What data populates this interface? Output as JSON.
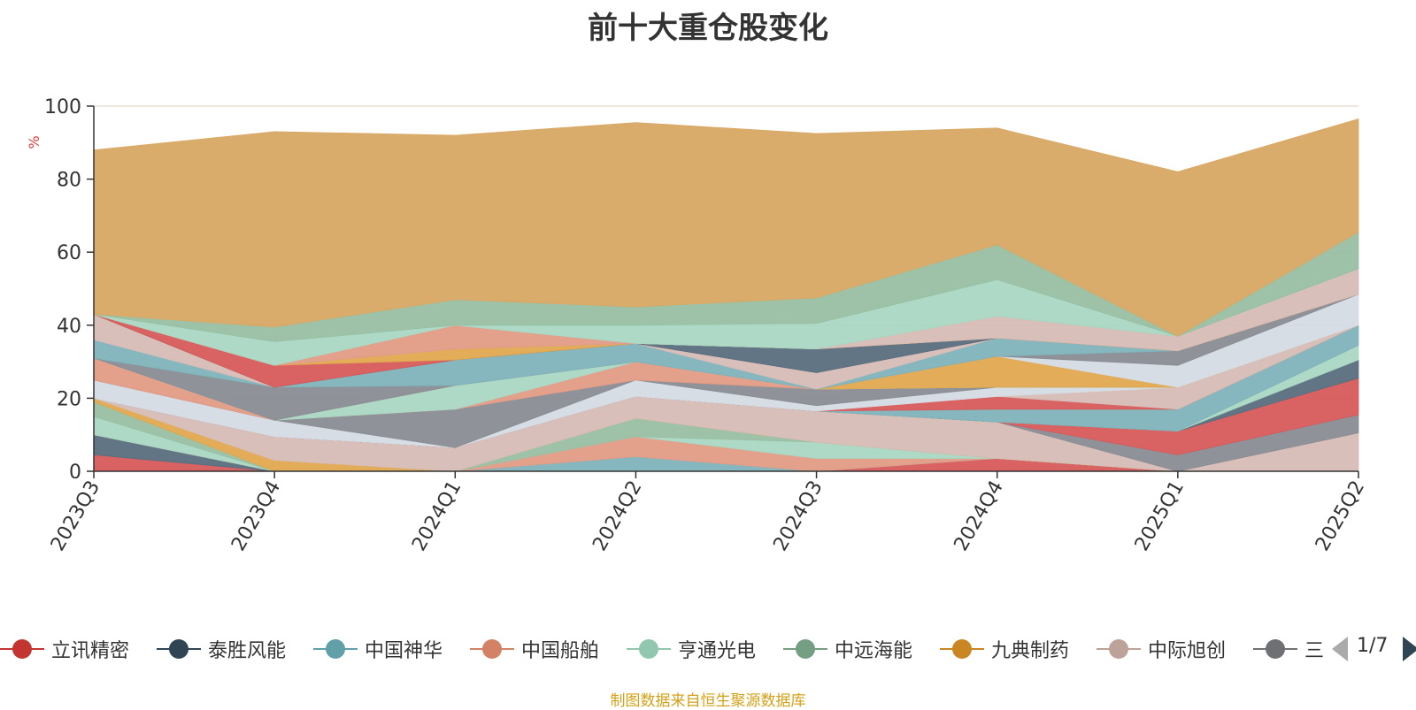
{
  "title": "前十大重仓股变化",
  "source_note": "制图数据来自恒生聚源数据库",
  "pager": {
    "text": "1/7"
  },
  "chart_data": {
    "type": "area",
    "stacked": true,
    "unit_label": "%",
    "ylim": [
      0,
      100
    ],
    "yticks": [
      "0",
      "20",
      "40",
      "60",
      "80",
      "100"
    ],
    "categories": [
      "2023Q3",
      "2023Q4",
      "2024Q1",
      "2024Q2",
      "2024Q3",
      "2024Q4",
      "2025Q1",
      "2025Q2"
    ],
    "grid": true,
    "legend_position": "bottom",
    "series": [
      {
        "name": "立讯精密",
        "color": "#d75a5a",
        "values": [
          4.5,
          0,
          0,
          0,
          0,
          3.5,
          0,
          0
        ]
      },
      {
        "name": "泰胜风能",
        "color": "#5a6e7e",
        "values": [
          5.5,
          0,
          0,
          0,
          0,
          0,
          0,
          0
        ]
      },
      {
        "name": "中国神华",
        "color": "#7fb3bb",
        "values": [
          0,
          0,
          0,
          4,
          0,
          0,
          0,
          0
        ]
      },
      {
        "name": "中国船舶",
        "color": "#e29b85",
        "values": [
          0,
          0,
          0,
          5.5,
          3.5,
          0,
          0,
          0
        ]
      },
      {
        "name": "亨通光电",
        "color": "#a9d7c3",
        "values": [
          5,
          0,
          0,
          0,
          4.5,
          0,
          0,
          0
        ]
      },
      {
        "name": "中远海能",
        "color": "#98bfa3",
        "values": [
          4,
          0,
          0,
          5,
          0,
          0,
          0,
          0
        ]
      },
      {
        "name": "九典制药",
        "color": "#e0a84f",
        "values": [
          1,
          3,
          0,
          0,
          0,
          0,
          0,
          0
        ]
      },
      {
        "name": "中际旭创",
        "color": "#d6bcb5",
        "values": [
          0,
          6.5,
          6.5,
          6,
          8.5,
          10,
          0,
          10.5
        ]
      },
      {
        "name": "",
        "color": "#898c93",
        "values": [
          0,
          0,
          0,
          0,
          0,
          0,
          4.5,
          5
        ]
      },
      {
        "name": "",
        "color": "#d75a5a",
        "values": [
          0,
          0,
          0,
          0,
          0,
          0,
          6.5,
          10
        ]
      },
      {
        "name": "",
        "color": "#5a6e7e",
        "values": [
          0,
          0,
          0,
          0,
          0,
          0,
          0,
          5
        ]
      },
      {
        "name": "",
        "color": "#a9d7c3",
        "values": [
          0,
          0,
          0,
          0,
          0,
          0,
          0,
          4
        ]
      },
      {
        "name": "",
        "color": "#7fb3bb",
        "values": [
          0,
          0,
          0,
          0,
          0,
          3.5,
          6,
          5.5
        ]
      },
      {
        "name": "",
        "color": "#d75a5a",
        "values": [
          0,
          0,
          0,
          0,
          0,
          3.5,
          0,
          0
        ]
      },
      {
        "name": "",
        "color": "#d6bcb5",
        "values": [
          0,
          0,
          0,
          0,
          0,
          0,
          6,
          0
        ]
      },
      {
        "name": "",
        "color": "#d5dbe3",
        "values": [
          5,
          4.5,
          0,
          4.5,
          1.5,
          2.5,
          0,
          0
        ]
      },
      {
        "name": "",
        "color": "#898c93",
        "values": [
          0,
          0,
          10.5,
          0,
          4.5,
          0,
          0,
          0
        ]
      },
      {
        "name": "",
        "color": "#e29b85",
        "values": [
          6,
          0,
          0,
          5,
          0,
          0,
          0,
          0
        ]
      },
      {
        "name": "",
        "color": "#a9d7c3",
        "values": [
          0,
          0,
          6.5,
          0,
          0,
          0,
          0,
          0
        ]
      },
      {
        "name": "",
        "color": "#e0a84f",
        "values": [
          0,
          0,
          0,
          0,
          0,
          8.5,
          0,
          0
        ]
      },
      {
        "name": "",
        "color": "#d5dbe3",
        "values": [
          0,
          0,
          0,
          0,
          0,
          0,
          6,
          8.5
        ]
      },
      {
        "name": "",
        "color": "#898c93",
        "values": [
          0,
          9,
          0,
          0,
          0,
          0,
          4,
          0
        ]
      },
      {
        "name": "",
        "color": "#7fb3bb",
        "values": [
          5,
          0,
          7,
          5,
          0,
          5,
          0,
          0
        ]
      },
      {
        "name": "",
        "color": "#d6bcb5",
        "values": [
          7,
          0,
          0,
          0,
          4.5,
          0,
          0,
          0
        ]
      },
      {
        "name": "",
        "color": "#e29b85",
        "values": [
          0,
          0,
          0,
          0,
          0,
          0,
          0,
          0
        ]
      },
      {
        "name": "",
        "color": "#5a6e7e",
        "values": [
          0,
          0,
          0,
          0,
          6.5,
          0,
          0,
          0
        ]
      },
      {
        "name": "",
        "color": "#d75a5a",
        "values": [
          0,
          6,
          0,
          0,
          0,
          0,
          0,
          0
        ]
      },
      {
        "name": "",
        "color": "#e0a84f",
        "values": [
          0,
          0,
          3,
          0,
          0,
          0,
          0,
          0
        ]
      },
      {
        "name": "",
        "color": "#d6bcb5",
        "values": [
          0,
          0,
          0,
          0,
          0,
          6,
          4,
          7
        ]
      },
      {
        "name": "",
        "color": "#e29b85",
        "values": [
          0,
          0,
          6.5,
          0,
          0,
          0,
          0,
          0
        ]
      },
      {
        "name": "",
        "color": "#a9d7c3",
        "values": [
          0,
          6.5,
          0,
          0,
          0,
          0,
          0,
          0
        ]
      },
      {
        "name": "",
        "color": "#a9d7c3",
        "values": [
          0,
          0,
          0,
          5,
          7,
          10,
          0,
          0
        ]
      },
      {
        "name": "",
        "color": "#98bfa3",
        "values": [
          0,
          4,
          7,
          5,
          7,
          9.5,
          0,
          10
        ]
      },
      {
        "name": "",
        "color": "#d8a864",
        "values": [
          45,
          53.5,
          45,
          50.5,
          45,
          32,
          45,
          31
        ]
      }
    ]
  },
  "legend": [
    {
      "name": "立讯精密",
      "color": "#c23531"
    },
    {
      "name": "泰胜风能",
      "color": "#2f4554"
    },
    {
      "name": "中国神华",
      "color": "#61a0a8"
    },
    {
      "name": "中国船舶",
      "color": "#d48265"
    },
    {
      "name": "亨通光电",
      "color": "#91c7ae"
    },
    {
      "name": "中远海能",
      "color": "#749f83"
    },
    {
      "name": "九典制药",
      "color": "#ca8622"
    },
    {
      "name": "中际旭创",
      "color": "#bda29a"
    },
    {
      "name": "三",
      "color": "#6e7074"
    }
  ]
}
